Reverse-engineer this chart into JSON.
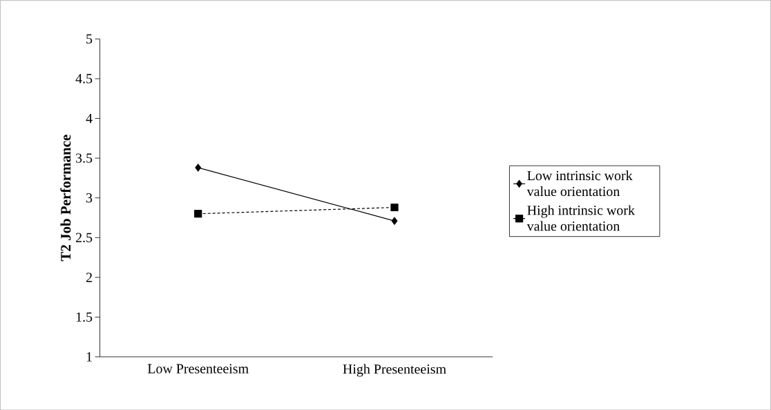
{
  "chart_data": {
    "type": "line",
    "ylabel": "T2  Job Performance",
    "categories": [
      "Low Presenteeism",
      "High Presenteeism"
    ],
    "series": [
      {
        "name": "Low intrinsic work value orientation",
        "color": "#000000",
        "values": [
          3.38,
          2.71
        ],
        "marker": "diamond",
        "line_style": "solid"
      },
      {
        "name": "High intrinsic work value orientation",
        "color": "#000000",
        "values": [
          2.8,
          2.88
        ],
        "marker": "square",
        "line_style": "dashed"
      }
    ],
    "ylim": [
      1,
      5
    ],
    "yticks": [
      1,
      1.5,
      2,
      2.5,
      3,
      3.5,
      4,
      4.5,
      5
    ],
    "grid": false,
    "legend": "right"
  }
}
